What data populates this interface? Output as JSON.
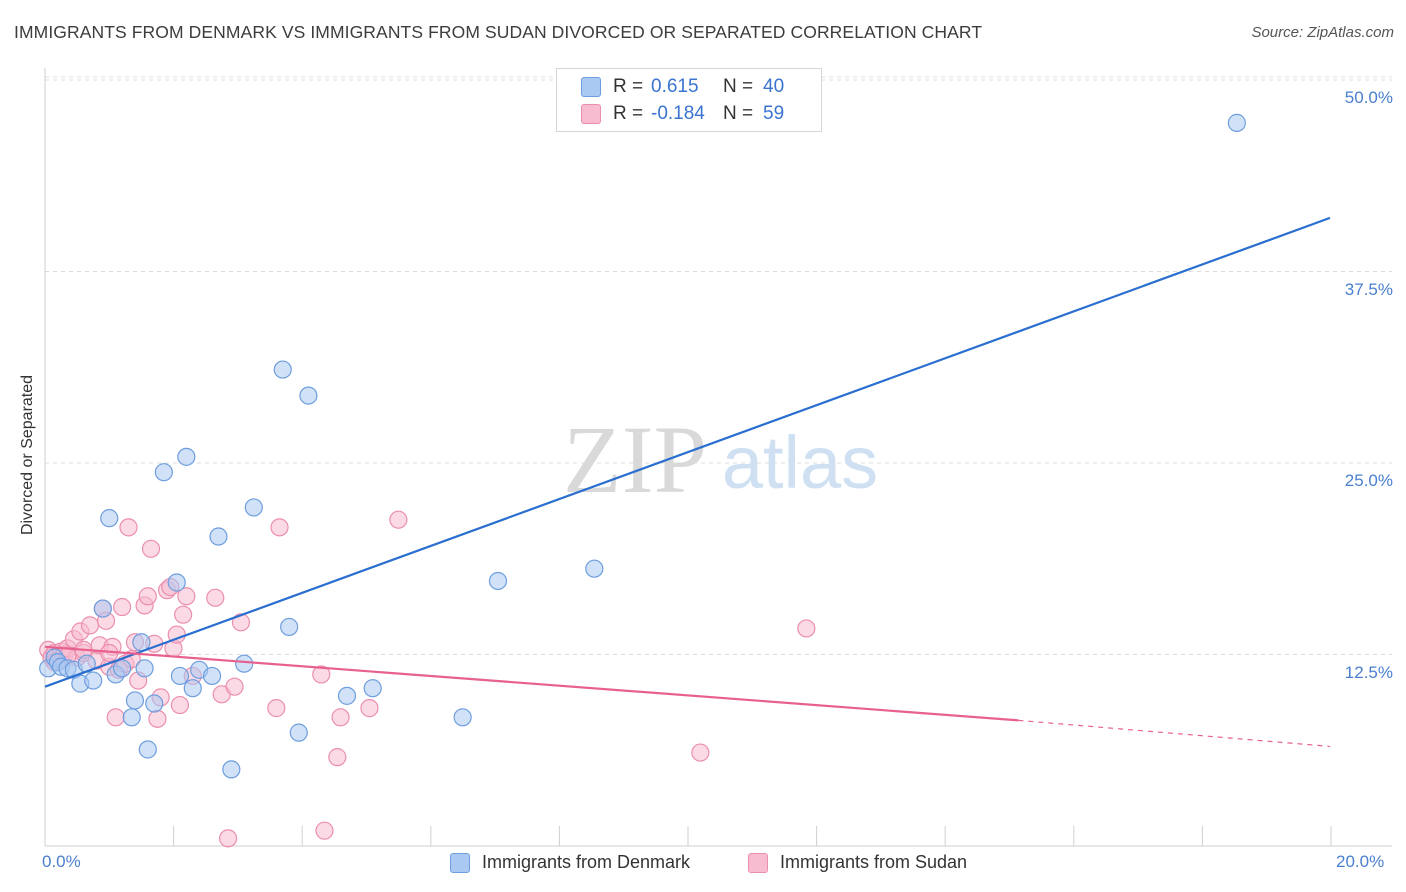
{
  "title": "IMMIGRANTS FROM DENMARK VS IMMIGRANTS FROM SUDAN DIVORCED OR SEPARATED CORRELATION CHART",
  "source": "Source: ZipAtlas.com",
  "watermark": {
    "zip": "ZIP",
    "atlas": "atlas"
  },
  "colors": {
    "denmark_fill": "#a9c8f2",
    "denmark_stroke": "#6e9ede",
    "denmark_line": "#2a6fd0",
    "sudan_fill": "#f7bcd0",
    "sudan_stroke": "#eb8fae",
    "sudan_line": "#e8608e",
    "tick_label": "#4a7fcf",
    "grid": "#dcdcdc"
  },
  "legend_top": {
    "rows": [
      {
        "series": "denmark",
        "r_label": "R =",
        "r_value": "0.615",
        "n_label": "N =",
        "n_value": "40"
      },
      {
        "series": "sudan",
        "r_label": "R =",
        "r_value": "-0.184",
        "n_label": "N =",
        "n_value": "59"
      }
    ]
  },
  "legend_bottom": {
    "denmark": "Immigrants from Denmark",
    "sudan": "Immigrants from Sudan"
  },
  "chart_data": {
    "type": "scatter",
    "title": "IMMIGRANTS FROM DENMARK VS IMMIGRANTS FROM SUDAN DIVORCED OR SEPARATED CORRELATION CHART",
    "xlabel": "",
    "ylabel": "Divorced or Separated",
    "xlim": [
      0,
      20
    ],
    "ylim": [
      0,
      50
    ],
    "x_tick_labels": [
      "0.0%",
      "20.0%"
    ],
    "y_ticks": [
      12.5,
      25.0,
      37.5,
      50.0
    ],
    "y_tick_labels": [
      "12.5%",
      "25.0%",
      "37.5%",
      "50.0%"
    ],
    "grid": "horizontal dashed",
    "legend": "top-center",
    "series": [
      {
        "name": "Immigrants from Denmark",
        "points": [
          [
            0.05,
            11.6
          ],
          [
            0.15,
            12.3
          ],
          [
            0.2,
            12.0
          ],
          [
            0.25,
            11.7
          ],
          [
            0.35,
            11.6
          ],
          [
            0.45,
            11.5
          ],
          [
            0.55,
            10.6
          ],
          [
            0.65,
            11.9
          ],
          [
            0.75,
            10.8
          ],
          [
            0.9,
            15.5
          ],
          [
            1.0,
            21.4
          ],
          [
            1.1,
            11.2
          ],
          [
            1.2,
            11.6
          ],
          [
            1.35,
            8.4
          ],
          [
            1.4,
            9.5
          ],
          [
            1.5,
            13.3
          ],
          [
            1.55,
            11.6
          ],
          [
            1.6,
            6.3
          ],
          [
            1.7,
            9.3
          ],
          [
            1.85,
            24.4
          ],
          [
            2.05,
            17.2
          ],
          [
            2.1,
            11.1
          ],
          [
            2.2,
            25.4
          ],
          [
            2.3,
            10.3
          ],
          [
            2.4,
            11.5
          ],
          [
            2.6,
            11.1
          ],
          [
            2.7,
            20.2
          ],
          [
            2.9,
            5.0
          ],
          [
            3.1,
            11.9
          ],
          [
            3.25,
            22.1
          ],
          [
            3.7,
            31.1
          ],
          [
            3.8,
            14.3
          ],
          [
            3.95,
            7.4
          ],
          [
            4.1,
            29.4
          ],
          [
            4.7,
            9.8
          ],
          [
            5.1,
            10.3
          ],
          [
            6.5,
            8.4
          ],
          [
            7.05,
            17.3
          ],
          [
            8.55,
            18.1
          ],
          [
            18.55,
            47.2
          ]
        ],
        "trend": {
          "x": [
            0,
            20
          ],
          "y": [
            10.4,
            41.0
          ],
          "style": "solid"
        }
      },
      {
        "name": "Immigrants from Sudan",
        "points": [
          [
            0.05,
            12.8
          ],
          [
            0.1,
            12.3
          ],
          [
            0.15,
            12.6
          ],
          [
            0.2,
            12.1
          ],
          [
            0.25,
            12.7
          ],
          [
            0.3,
            12.5
          ],
          [
            0.35,
            12.9
          ],
          [
            0.45,
            13.5
          ],
          [
            0.5,
            12.3
          ],
          [
            0.55,
            14.0
          ],
          [
            0.6,
            12.6
          ],
          [
            0.7,
            14.4
          ],
          [
            0.8,
            12.1
          ],
          [
            0.85,
            13.1
          ],
          [
            0.9,
            15.5
          ],
          [
            0.95,
            14.7
          ],
          [
            1.0,
            11.7
          ],
          [
            1.05,
            13.0
          ],
          [
            1.1,
            8.4
          ],
          [
            1.15,
            11.5
          ],
          [
            1.2,
            15.6
          ],
          [
            1.25,
            11.9
          ],
          [
            1.3,
            20.8
          ],
          [
            1.35,
            12.2
          ],
          [
            1.4,
            13.3
          ],
          [
            1.45,
            10.8
          ],
          [
            1.55,
            15.7
          ],
          [
            1.6,
            16.3
          ],
          [
            1.65,
            19.4
          ],
          [
            1.7,
            13.2
          ],
          [
            1.75,
            8.3
          ],
          [
            1.8,
            9.7
          ],
          [
            1.9,
            16.7
          ],
          [
            1.95,
            16.9
          ],
          [
            2.0,
            12.9
          ],
          [
            2.05,
            13.8
          ],
          [
            2.1,
            9.2
          ],
          [
            2.15,
            15.1
          ],
          [
            2.2,
            16.3
          ],
          [
            2.3,
            11.1
          ],
          [
            2.65,
            16.2
          ],
          [
            2.75,
            9.9
          ],
          [
            2.85,
            0.5
          ],
          [
            2.95,
            10.4
          ],
          [
            3.05,
            14.6
          ],
          [
            3.6,
            9.0
          ],
          [
            3.65,
            20.8
          ],
          [
            4.3,
            11.2
          ],
          [
            4.35,
            1.0
          ],
          [
            4.55,
            5.8
          ],
          [
            4.6,
            8.4
          ],
          [
            5.05,
            9.0
          ],
          [
            5.5,
            21.3
          ],
          [
            10.2,
            6.1
          ],
          [
            11.85,
            14.2
          ],
          [
            0.35,
            12.4
          ],
          [
            0.6,
            12.8
          ],
          [
            1.0,
            12.6
          ],
          [
            0.15,
            12.0
          ]
        ],
        "trend": {
          "x": [
            0,
            15.15
          ],
          "y": [
            13.0,
            8.2
          ],
          "style": "solid",
          "extension": {
            "x": [
              15.15,
              20
            ],
            "y": [
              8.2,
              6.5
            ],
            "style": "dashed"
          }
        }
      }
    ]
  }
}
